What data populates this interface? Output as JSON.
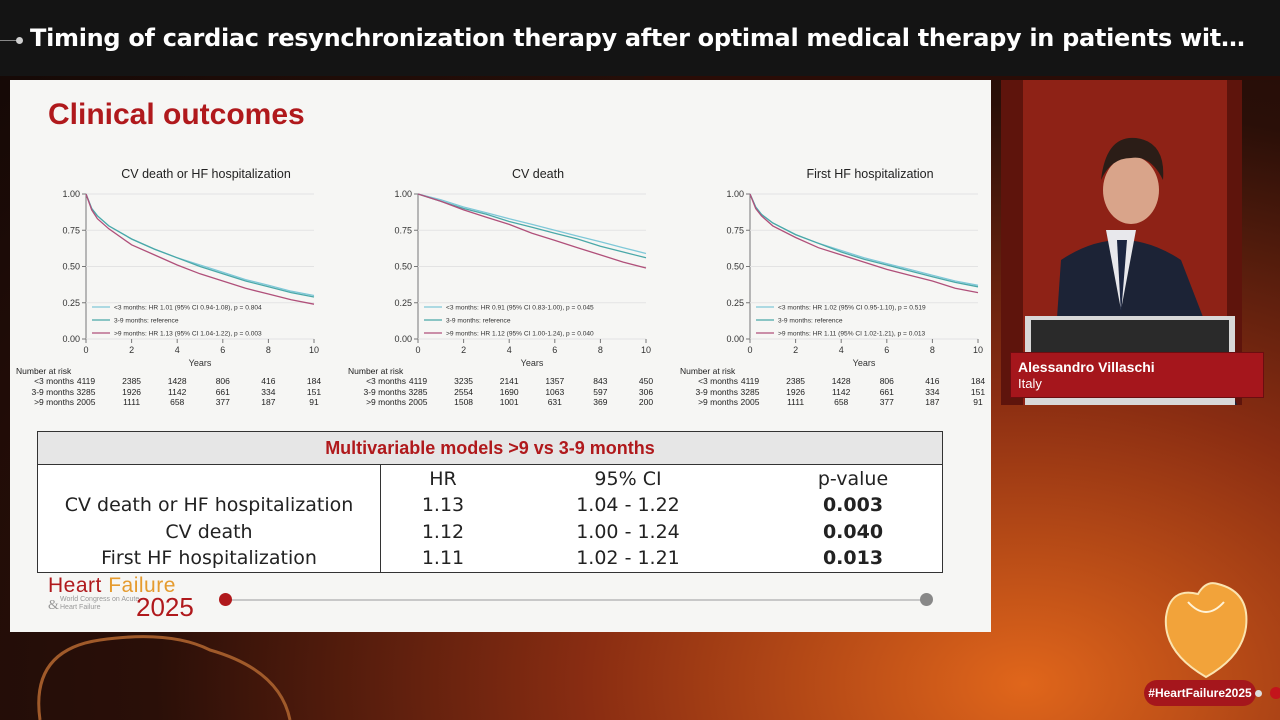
{
  "window": {
    "title": "Timing of cardiac resynchronization therapy after optimal medical therapy in patients with heart f..."
  },
  "slide": {
    "heading": "Clinical outcomes",
    "multivariable": {
      "title": "Multivariable models >9 vs 3-9 months",
      "columns": [
        "HR",
        "95% CI",
        "p-value"
      ],
      "rows": [
        {
          "outcome": "CV death or HF hospitalization",
          "hr": "1.13",
          "ci": "1.04 - 1.22",
          "p": "0.003"
        },
        {
          "outcome": "CV death",
          "hr": "1.12",
          "ci": "1.00 - 1.24",
          "p": "0.040"
        },
        {
          "outcome": "First HF hospitalization",
          "hr": "1.11",
          "ci": "1.02 - 1.21",
          "p": "0.013"
        }
      ]
    },
    "risk_header": "Number at risk",
    "risk_labels": [
      "<3 months",
      "3-9 months",
      ">9 months"
    ],
    "brand": {
      "name_part1": "Heart ",
      "name_part2": "Failure",
      "year": "2025",
      "ampersand": "&",
      "subtitle": "World Congress on Acute Heart Failure"
    }
  },
  "speaker": {
    "name": "Alessandro Villaschi",
    "country": "Italy"
  },
  "hashtag": "#HeartFailure2025",
  "colors": {
    "accent_red": "#b0191c",
    "accent_orange": "#e59b2e",
    "series_lt3": "#7fc8d8",
    "series_3to9": "#4aa8a8",
    "series_gt9": "#b0507a"
  },
  "chart_data": [
    {
      "type": "line",
      "title": "CV death or HF hospitalization",
      "xlabel": "Years",
      "xlim": [
        0,
        10
      ],
      "ylim": [
        0,
        1
      ],
      "xticks": [
        0,
        2,
        4,
        6,
        8,
        10
      ],
      "yticks": [
        "0.00",
        "0.25",
        "0.50",
        "0.75",
        "1.00"
      ],
      "x": [
        0,
        0.25,
        0.5,
        1,
        2,
        3,
        4,
        5,
        6,
        7,
        8,
        9,
        10
      ],
      "series": [
        {
          "name": "<3 months: HR 1.01 (95% CI 0.94-1.08), p = 0.804",
          "values": [
            1.0,
            0.9,
            0.85,
            0.78,
            0.69,
            0.62,
            0.56,
            0.51,
            0.46,
            0.41,
            0.37,
            0.33,
            0.3
          ]
        },
        {
          "name": "3-9 months: reference",
          "values": [
            1.0,
            0.9,
            0.85,
            0.78,
            0.69,
            0.62,
            0.56,
            0.5,
            0.45,
            0.4,
            0.36,
            0.32,
            0.29
          ]
        },
        {
          "name": ">9 months: HR 1.13 (95% CI 1.04-1.22), p = 0.003",
          "values": [
            1.0,
            0.89,
            0.83,
            0.76,
            0.65,
            0.58,
            0.51,
            0.45,
            0.4,
            0.35,
            0.31,
            0.27,
            0.24
          ]
        }
      ],
      "at_risk": {
        "x": [
          0,
          2,
          4,
          6,
          8,
          10
        ],
        "rows": [
          [
            "4119",
            "2385",
            "1428",
            "806",
            "416",
            "184"
          ],
          [
            "3285",
            "1926",
            "1142",
            "661",
            "334",
            "151"
          ],
          [
            "2005",
            "1111",
            "658",
            "377",
            "187",
            "91"
          ]
        ]
      }
    },
    {
      "type": "line",
      "title": "CV death",
      "xlabel": "Years",
      "xlim": [
        0,
        10
      ],
      "ylim": [
        0,
        1
      ],
      "xticks": [
        0,
        2,
        4,
        6,
        8,
        10
      ],
      "yticks": [
        "0.00",
        "0.25",
        "0.50",
        "0.75",
        "1.00"
      ],
      "x": [
        0,
        1,
        2,
        3,
        4,
        5,
        6,
        7,
        8,
        9,
        10
      ],
      "series": [
        {
          "name": "<3 months: HR 0.91 (95% CI 0.83-1.00), p = 0.045",
          "values": [
            1.0,
            0.96,
            0.91,
            0.87,
            0.83,
            0.79,
            0.75,
            0.71,
            0.67,
            0.63,
            0.59
          ]
        },
        {
          "name": "3-9 months: reference",
          "values": [
            1.0,
            0.95,
            0.9,
            0.86,
            0.81,
            0.77,
            0.73,
            0.69,
            0.64,
            0.6,
            0.56
          ]
        },
        {
          "name": ">9 months: HR 1.12 (95% CI 1.00-1.24), p = 0.040",
          "values": [
            1.0,
            0.95,
            0.89,
            0.84,
            0.79,
            0.73,
            0.68,
            0.63,
            0.58,
            0.53,
            0.49
          ]
        }
      ],
      "at_risk": {
        "x": [
          0,
          2,
          4,
          6,
          8,
          10
        ],
        "rows": [
          [
            "4119",
            "3235",
            "2141",
            "1357",
            "843",
            "450"
          ],
          [
            "3285",
            "2554",
            "1690",
            "1063",
            "597",
            "306"
          ],
          [
            "2005",
            "1508",
            "1001",
            "631",
            "369",
            "200"
          ]
        ]
      }
    },
    {
      "type": "line",
      "title": "First HF hospitalization",
      "xlabel": "Years",
      "xlim": [
        0,
        10
      ],
      "ylim": [
        0,
        1
      ],
      "xticks": [
        0,
        2,
        4,
        6,
        8,
        10
      ],
      "yticks": [
        "0.00",
        "0.25",
        "0.50",
        "0.75",
        "1.00"
      ],
      "x": [
        0,
        0.25,
        0.5,
        1,
        2,
        3,
        4,
        5,
        6,
        7,
        8,
        9,
        10
      ],
      "series": [
        {
          "name": "<3 months: HR 1.02 (95% CI 0.95-1.10), p = 0.519",
          "values": [
            1.0,
            0.91,
            0.86,
            0.8,
            0.72,
            0.66,
            0.61,
            0.56,
            0.52,
            0.48,
            0.44,
            0.4,
            0.37
          ]
        },
        {
          "name": "3-9 months: reference",
          "values": [
            1.0,
            0.91,
            0.86,
            0.8,
            0.72,
            0.66,
            0.6,
            0.55,
            0.51,
            0.47,
            0.43,
            0.39,
            0.36
          ]
        },
        {
          "name": ">9 months: HR 1.11 (95% CI 1.02-1.21), p = 0.013",
          "values": [
            1.0,
            0.9,
            0.85,
            0.78,
            0.7,
            0.63,
            0.58,
            0.53,
            0.48,
            0.44,
            0.4,
            0.35,
            0.32
          ]
        }
      ],
      "at_risk": {
        "x": [
          0,
          2,
          4,
          6,
          8,
          10
        ],
        "rows": [
          [
            "4119",
            "2385",
            "1428",
            "806",
            "416",
            "184"
          ],
          [
            "3285",
            "1926",
            "1142",
            "661",
            "334",
            "151"
          ],
          [
            "2005",
            "1111",
            "658",
            "377",
            "187",
            "91"
          ]
        ]
      }
    }
  ]
}
